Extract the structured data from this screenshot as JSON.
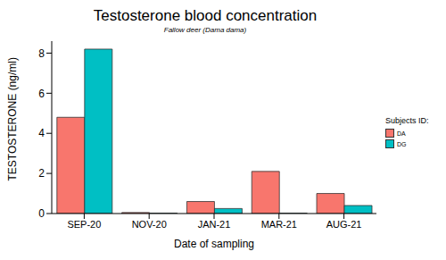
{
  "chart_data": {
    "type": "bar",
    "title": "Testosterone blood concentration",
    "subtitle": "Fallow deer (Dama dama)",
    "x_label": "Date of sampling",
    "y_label": "TESTOSTERONE (ng/ml)",
    "legend_title": "Subjects ID:",
    "categories": [
      "SEP-20",
      "NOV-20",
      "JAN-21",
      "MAR-21",
      "AUG-21"
    ],
    "series": [
      {
        "name": "DA",
        "color": "#F8766D",
        "values": [
          4.8,
          0.05,
          0.6,
          2.1,
          1.0
        ]
      },
      {
        "name": "DG",
        "color": "#00BFC4",
        "values": [
          8.2,
          0.02,
          0.25,
          0.02,
          0.4
        ]
      }
    ],
    "ylim": [
      0,
      8.6
    ],
    "yticks": [
      0,
      2,
      4,
      6,
      8
    ],
    "grid": false,
    "legend": "right"
  }
}
